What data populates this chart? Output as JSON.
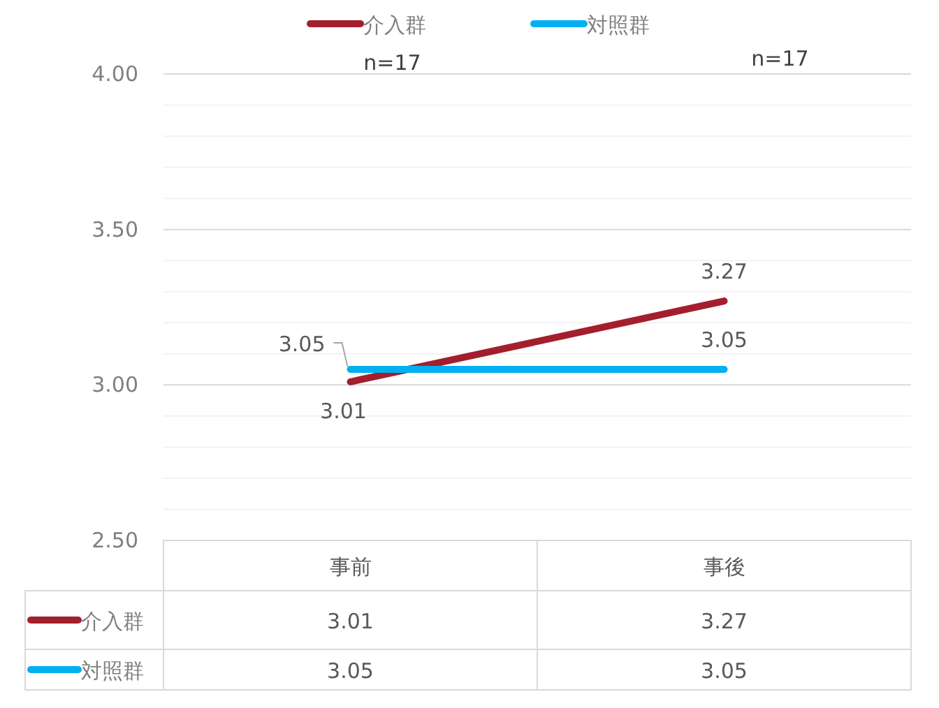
{
  "chart_data": {
    "type": "line",
    "categories": [
      "事前",
      "事後"
    ],
    "series": [
      {
        "name": "介入群",
        "color": "#a31f2e",
        "values": [
          3.01,
          3.27
        ],
        "value_labels": [
          "3.01",
          "3.27"
        ]
      },
      {
        "name": "対照群",
        "color": "#00b0f0",
        "values": [
          3.05,
          3.05
        ],
        "value_labels": [
          "3.05",
          "3.05"
        ]
      }
    ],
    "ylim": [
      2.5,
      4.0
    ],
    "yticks": [
      {
        "value": 2.5,
        "label": "2.50"
      },
      {
        "value": 2.6,
        "label": null
      },
      {
        "value": 2.7,
        "label": null
      },
      {
        "value": 2.8,
        "label": null
      },
      {
        "value": 2.9,
        "label": null
      },
      {
        "value": 3.0,
        "label": "3.00"
      },
      {
        "value": 3.1,
        "label": null
      },
      {
        "value": 3.2,
        "label": null
      },
      {
        "value": 3.3,
        "label": null
      },
      {
        "value": 3.4,
        "label": null
      },
      {
        "value": 3.5,
        "label": "3.50"
      },
      {
        "value": 3.6,
        "label": null
      },
      {
        "value": 3.7,
        "label": null
      },
      {
        "value": 3.8,
        "label": null
      },
      {
        "value": 3.9,
        "label": null
      },
      {
        "value": 4.0,
        "label": "4.00"
      }
    ],
    "grid": "y",
    "legend": "top",
    "marker": "none",
    "annotations": [
      "n=17",
      "n=17"
    ]
  }
}
